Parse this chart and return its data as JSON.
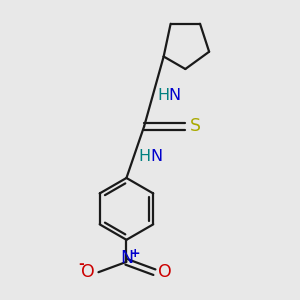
{
  "background_color": "#e8e8e8",
  "bond_color": "#1a1a1a",
  "N_color": "#0000cc",
  "H_color": "#008080",
  "S_color": "#aaaa00",
  "O_color": "#cc0000",
  "figsize": [
    3.0,
    3.0
  ],
  "dpi": 100,
  "xlim": [
    0,
    10
  ],
  "ylim": [
    0,
    10
  ]
}
